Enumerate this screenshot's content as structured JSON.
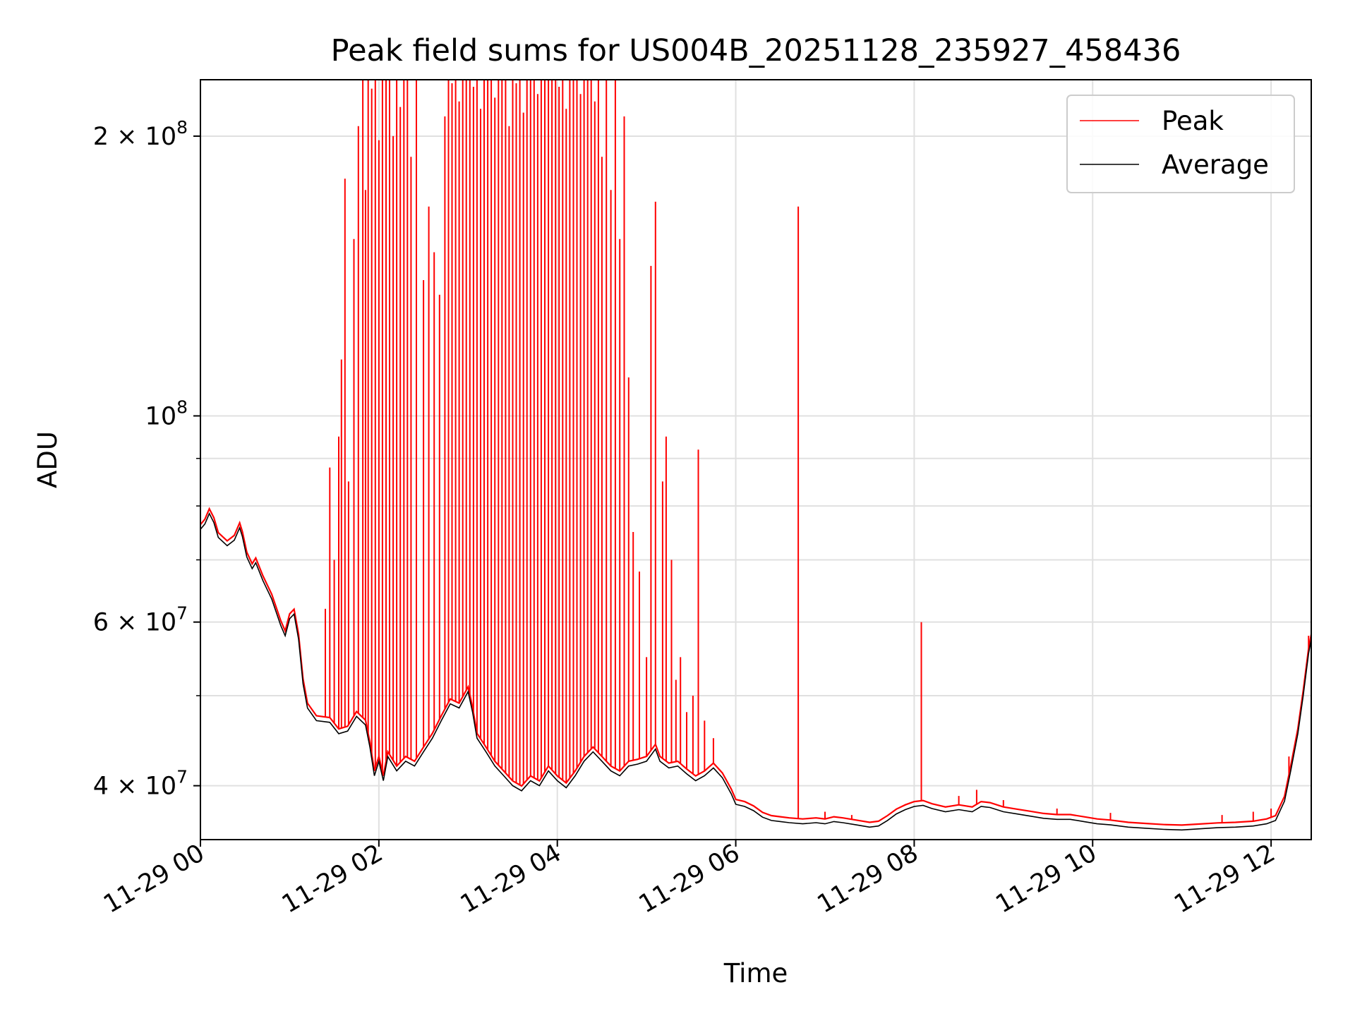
{
  "chart_data": {
    "type": "line",
    "title": "Peak field sums for US004B_20251128_235927_458436",
    "xlabel": "Time",
    "ylabel": "ADU",
    "yscale": "log",
    "grid": true,
    "legend": "top-right",
    "xlim_hours": [
      0.0,
      12.45
    ],
    "ylim": [
      35000000,
      230000000
    ],
    "x_ticks": [
      {
        "hour": 0,
        "label": "11-29 00"
      },
      {
        "hour": 2,
        "label": "11-29 02"
      },
      {
        "hour": 4,
        "label": "11-29 04"
      },
      {
        "hour": 6,
        "label": "11-29 06"
      },
      {
        "hour": 8,
        "label": "11-29 08"
      },
      {
        "hour": 10,
        "label": "11-29 10"
      },
      {
        "hour": 12,
        "label": "11-29 12"
      }
    ],
    "y_major_ticks": [
      {
        "value": 40000000,
        "label": "4 × 10",
        "exp": "7"
      },
      {
        "value": 60000000,
        "label": "6 × 10",
        "exp": "7"
      },
      {
        "value": 100000000,
        "label": "10",
        "exp": "8"
      },
      {
        "value": 200000000,
        "label": "2 × 10",
        "exp": "8"
      }
    ],
    "y_minor_ticks": [
      50000000,
      70000000,
      80000000,
      90000000
    ],
    "colors": {
      "peak": "#ff0000",
      "average": "#000000",
      "grid": "#e0e0e0"
    },
    "series": [
      {
        "name": "Average",
        "color": "#000000",
        "points": [
          [
            0.0,
            75500000
          ],
          [
            0.05,
            76500000
          ],
          [
            0.1,
            78500000
          ],
          [
            0.15,
            76800000
          ],
          [
            0.2,
            74000000
          ],
          [
            0.3,
            72500000
          ],
          [
            0.38,
            73500000
          ],
          [
            0.44,
            75800000
          ],
          [
            0.47,
            74200000
          ],
          [
            0.52,
            70500000
          ],
          [
            0.58,
            68500000
          ],
          [
            0.62,
            69500000
          ],
          [
            0.7,
            66500000
          ],
          [
            0.8,
            63500000
          ],
          [
            0.9,
            59500000
          ],
          [
            0.95,
            58000000
          ],
          [
            1.0,
            60500000
          ],
          [
            1.05,
            61200000
          ],
          [
            1.1,
            57500000
          ],
          [
            1.15,
            51500000
          ],
          [
            1.2,
            48500000
          ],
          [
            1.3,
            47000000
          ],
          [
            1.45,
            46800000
          ],
          [
            1.55,
            45500000
          ],
          [
            1.65,
            45800000
          ],
          [
            1.75,
            47500000
          ],
          [
            1.85,
            46500000
          ],
          [
            1.9,
            44000000
          ],
          [
            1.95,
            41000000
          ],
          [
            2.0,
            42500000
          ],
          [
            2.05,
            40500000
          ],
          [
            2.1,
            43000000
          ],
          [
            2.2,
            41500000
          ],
          [
            2.3,
            42500000
          ],
          [
            2.4,
            42000000
          ],
          [
            2.5,
            43500000
          ],
          [
            2.6,
            45000000
          ],
          [
            2.7,
            47000000
          ],
          [
            2.8,
            49000000
          ],
          [
            2.9,
            48500000
          ],
          [
            3.0,
            50500000
          ],
          [
            3.05,
            48000000
          ],
          [
            3.1,
            45000000
          ],
          [
            3.2,
            43500000
          ],
          [
            3.3,
            42000000
          ],
          [
            3.4,
            41000000
          ],
          [
            3.5,
            40000000
          ],
          [
            3.6,
            39500000
          ],
          [
            3.7,
            40500000
          ],
          [
            3.8,
            40000000
          ],
          [
            3.9,
            41500000
          ],
          [
            4.0,
            40500000
          ],
          [
            4.1,
            39800000
          ],
          [
            4.2,
            41000000
          ],
          [
            4.3,
            42500000
          ],
          [
            4.4,
            43500000
          ],
          [
            4.5,
            42500000
          ],
          [
            4.6,
            41500000
          ],
          [
            4.7,
            41000000
          ],
          [
            4.8,
            42000000
          ],
          [
            4.9,
            42200000
          ],
          [
            5.0,
            42500000
          ],
          [
            5.1,
            43800000
          ],
          [
            5.15,
            42500000
          ],
          [
            5.25,
            41800000
          ],
          [
            5.35,
            42000000
          ],
          [
            5.45,
            41200000
          ],
          [
            5.55,
            40500000
          ],
          [
            5.65,
            41000000
          ],
          [
            5.75,
            41800000
          ],
          [
            5.85,
            40800000
          ],
          [
            5.95,
            39200000
          ],
          [
            6.0,
            38200000
          ],
          [
            6.1,
            38000000
          ],
          [
            6.2,
            37600000
          ],
          [
            6.3,
            37000000
          ],
          [
            6.4,
            36700000
          ],
          [
            6.5,
            36600000
          ],
          [
            6.6,
            36500000
          ],
          [
            6.75,
            36400000
          ],
          [
            6.9,
            36500000
          ],
          [
            7.0,
            36400000
          ],
          [
            7.1,
            36600000
          ],
          [
            7.2,
            36500000
          ],
          [
            7.35,
            36300000
          ],
          [
            7.5,
            36100000
          ],
          [
            7.6,
            36200000
          ],
          [
            7.7,
            36700000
          ],
          [
            7.8,
            37300000
          ],
          [
            7.9,
            37700000
          ],
          [
            8.0,
            38000000
          ],
          [
            8.1,
            38100000
          ],
          [
            8.2,
            37800000
          ],
          [
            8.35,
            37500000
          ],
          [
            8.5,
            37700000
          ],
          [
            8.65,
            37500000
          ],
          [
            8.75,
            38000000
          ],
          [
            8.85,
            37900000
          ],
          [
            9.0,
            37500000
          ],
          [
            9.15,
            37300000
          ],
          [
            9.3,
            37100000
          ],
          [
            9.45,
            36900000
          ],
          [
            9.6,
            36800000
          ],
          [
            9.75,
            36800000
          ],
          [
            9.9,
            36600000
          ],
          [
            10.05,
            36400000
          ],
          [
            10.2,
            36300000
          ],
          [
            10.4,
            36100000
          ],
          [
            10.6,
            36000000
          ],
          [
            10.8,
            35900000
          ],
          [
            11.0,
            35850000
          ],
          [
            11.2,
            35950000
          ],
          [
            11.4,
            36050000
          ],
          [
            11.6,
            36100000
          ],
          [
            11.8,
            36200000
          ],
          [
            11.95,
            36400000
          ],
          [
            12.05,
            36700000
          ],
          [
            12.15,
            38500000
          ],
          [
            12.22,
            41500000
          ],
          [
            12.3,
            45500000
          ],
          [
            12.36,
            50000000
          ],
          [
            12.42,
            55500000
          ],
          [
            12.45,
            57500000
          ]
        ]
      },
      {
        "name": "Peak",
        "color": "#ff0000",
        "spikes": [
          [
            1.4,
            62000000
          ],
          [
            1.45,
            88000000
          ],
          [
            1.5,
            70000000
          ],
          [
            1.55,
            95000000
          ],
          [
            1.58,
            115000000
          ],
          [
            1.62,
            180000000
          ],
          [
            1.66,
            85000000
          ],
          [
            1.72,
            155000000
          ],
          [
            1.77,
            205000000
          ],
          [
            1.82,
            240000000
          ],
          [
            1.85,
            175000000
          ],
          [
            1.88,
            235000000
          ],
          [
            1.92,
            225000000
          ],
          [
            1.96,
            240000000
          ],
          [
            2.0,
            198000000
          ],
          [
            2.04,
            240000000
          ],
          [
            2.08,
            230000000
          ],
          [
            2.12,
            240000000
          ],
          [
            2.16,
            200000000
          ],
          [
            2.2,
            240000000
          ],
          [
            2.24,
            215000000
          ],
          [
            2.28,
            240000000
          ],
          [
            2.32,
            230000000
          ],
          [
            2.36,
            190000000
          ],
          [
            2.42,
            240000000
          ],
          [
            2.5,
            140000000
          ],
          [
            2.56,
            168000000
          ],
          [
            2.62,
            150000000
          ],
          [
            2.68,
            135000000
          ],
          [
            2.74,
            210000000
          ],
          [
            2.78,
            240000000
          ],
          [
            2.82,
            228000000
          ],
          [
            2.86,
            240000000
          ],
          [
            2.9,
            218000000
          ],
          [
            2.94,
            240000000
          ],
          [
            2.98,
            232000000
          ],
          [
            3.02,
            240000000
          ],
          [
            3.06,
            226000000
          ],
          [
            3.1,
            240000000
          ],
          [
            3.14,
            214000000
          ],
          [
            3.18,
            240000000
          ],
          [
            3.22,
            230000000
          ],
          [
            3.26,
            240000000
          ],
          [
            3.3,
            220000000
          ],
          [
            3.34,
            240000000
          ],
          [
            3.38,
            236000000
          ],
          [
            3.42,
            240000000
          ],
          [
            3.46,
            205000000
          ],
          [
            3.5,
            240000000
          ],
          [
            3.54,
            228000000
          ],
          [
            3.58,
            240000000
          ],
          [
            3.62,
            212000000
          ],
          [
            3.66,
            240000000
          ],
          [
            3.7,
            232000000
          ],
          [
            3.74,
            240000000
          ],
          [
            3.78,
            222000000
          ],
          [
            3.82,
            240000000
          ],
          [
            3.86,
            230000000
          ],
          [
            3.9,
            240000000
          ],
          [
            3.94,
            236000000
          ],
          [
            3.98,
            240000000
          ],
          [
            4.02,
            226000000
          ],
          [
            4.06,
            240000000
          ],
          [
            4.1,
            214000000
          ],
          [
            4.14,
            240000000
          ],
          [
            4.18,
            230000000
          ],
          [
            4.22,
            240000000
          ],
          [
            4.26,
            222000000
          ],
          [
            4.3,
            240000000
          ],
          [
            4.34,
            236000000
          ],
          [
            4.38,
            240000000
          ],
          [
            4.42,
            218000000
          ],
          [
            4.46,
            240000000
          ],
          [
            4.5,
            190000000
          ],
          [
            4.55,
            240000000
          ],
          [
            4.6,
            175000000
          ],
          [
            4.65,
            240000000
          ],
          [
            4.7,
            155000000
          ],
          [
            4.75,
            210000000
          ],
          [
            4.8,
            110000000
          ],
          [
            4.85,
            75000000
          ],
          [
            4.92,
            68000000
          ],
          [
            5.0,
            55000000
          ],
          [
            5.05,
            145000000
          ],
          [
            5.1,
            170000000
          ],
          [
            5.18,
            85000000
          ],
          [
            5.22,
            95000000
          ],
          [
            5.28,
            70000000
          ],
          [
            5.33,
            52000000
          ],
          [
            5.38,
            55000000
          ],
          [
            5.45,
            48000000
          ],
          [
            5.52,
            50000000
          ],
          [
            5.58,
            92000000
          ],
          [
            5.65,
            47000000
          ],
          [
            5.75,
            45000000
          ],
          [
            6.7,
            168000000
          ],
          [
            8.08,
            60000000
          ],
          [
            7.0,
            37500000
          ],
          [
            7.3,
            37200000
          ],
          [
            8.5,
            39000000
          ],
          [
            8.7,
            39600000
          ],
          [
            9.0,
            38600000
          ],
          [
            9.6,
            37800000
          ],
          [
            10.2,
            37400000
          ],
          [
            11.45,
            37200000
          ],
          [
            11.8,
            37500000
          ],
          [
            12.0,
            37800000
          ],
          [
            12.2,
            43000000
          ],
          [
            12.42,
            58000000
          ]
        ]
      }
    ]
  },
  "legend": {
    "peak_label": "Peak",
    "average_label": "Average"
  }
}
